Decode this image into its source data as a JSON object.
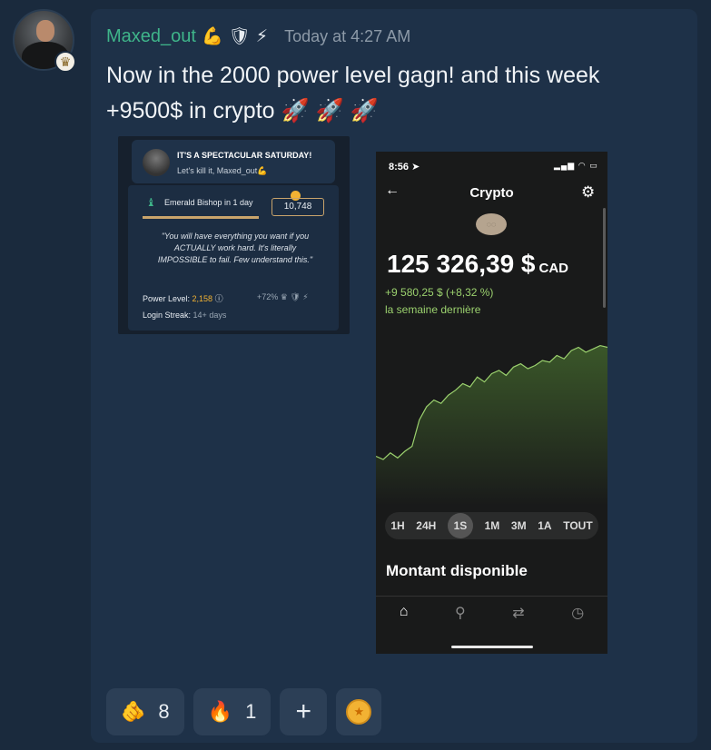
{
  "message": {
    "username": "Maxed_out",
    "username_emojis": [
      "💪",
      "🛡",
      "⚡"
    ],
    "timestamp": "Today at 4:27 AM",
    "text_line1": "Now in the 2000 power level gagn! and this week",
    "text_line2": "+9500$ in crypto 🚀 🚀 🚀",
    "colors": {
      "username": "#3fb58a",
      "background": "#1a2a3d",
      "card": "#1e3148"
    }
  },
  "attachment_left": {
    "banner_title": "IT'S A SPECTACULAR SATURDAY!",
    "banner_subtitle": "Let's kill it, Maxed_out💪",
    "rank_label": "Emerald Bishop in 1 day",
    "points": "10,748",
    "quote": "\"You will have everything you want if you ACTUALLY work hard. It's literally IMPOSSIBLE to fail. Few understand this.\"",
    "power_label": "Power Level: ",
    "power_value": "2,158",
    "boost": "+72%",
    "streak_label": "Login Streak: ",
    "streak_value": "14+ days"
  },
  "attachment_right": {
    "time": "8:56",
    "screen_title": "Crypto",
    "balance": "125 326,39 $",
    "currency": "CAD",
    "change": "+9 580,25 $ (+8,32 %)",
    "period": "la semaine dernière",
    "ranges": [
      "1H",
      "24H",
      "1S",
      "1M",
      "3M",
      "1A",
      "TOUT"
    ],
    "selected_range": "1S",
    "section_title": "Montant disponible",
    "chart_color": "#9bd16e",
    "chart_data": {
      "type": "area",
      "values": [
        30,
        28,
        32,
        29,
        33,
        36,
        52,
        60,
        64,
        62,
        67,
        70,
        74,
        72,
        78,
        75,
        80,
        82,
        79,
        84,
        86,
        83,
        85,
        88,
        87,
        91,
        89,
        94,
        96,
        93,
        95,
        97,
        96
      ]
    }
  },
  "reactions": [
    {
      "emoji": "🫵",
      "count": "8"
    },
    {
      "emoji": "🔥",
      "count": "1"
    }
  ],
  "add_reaction": "+"
}
